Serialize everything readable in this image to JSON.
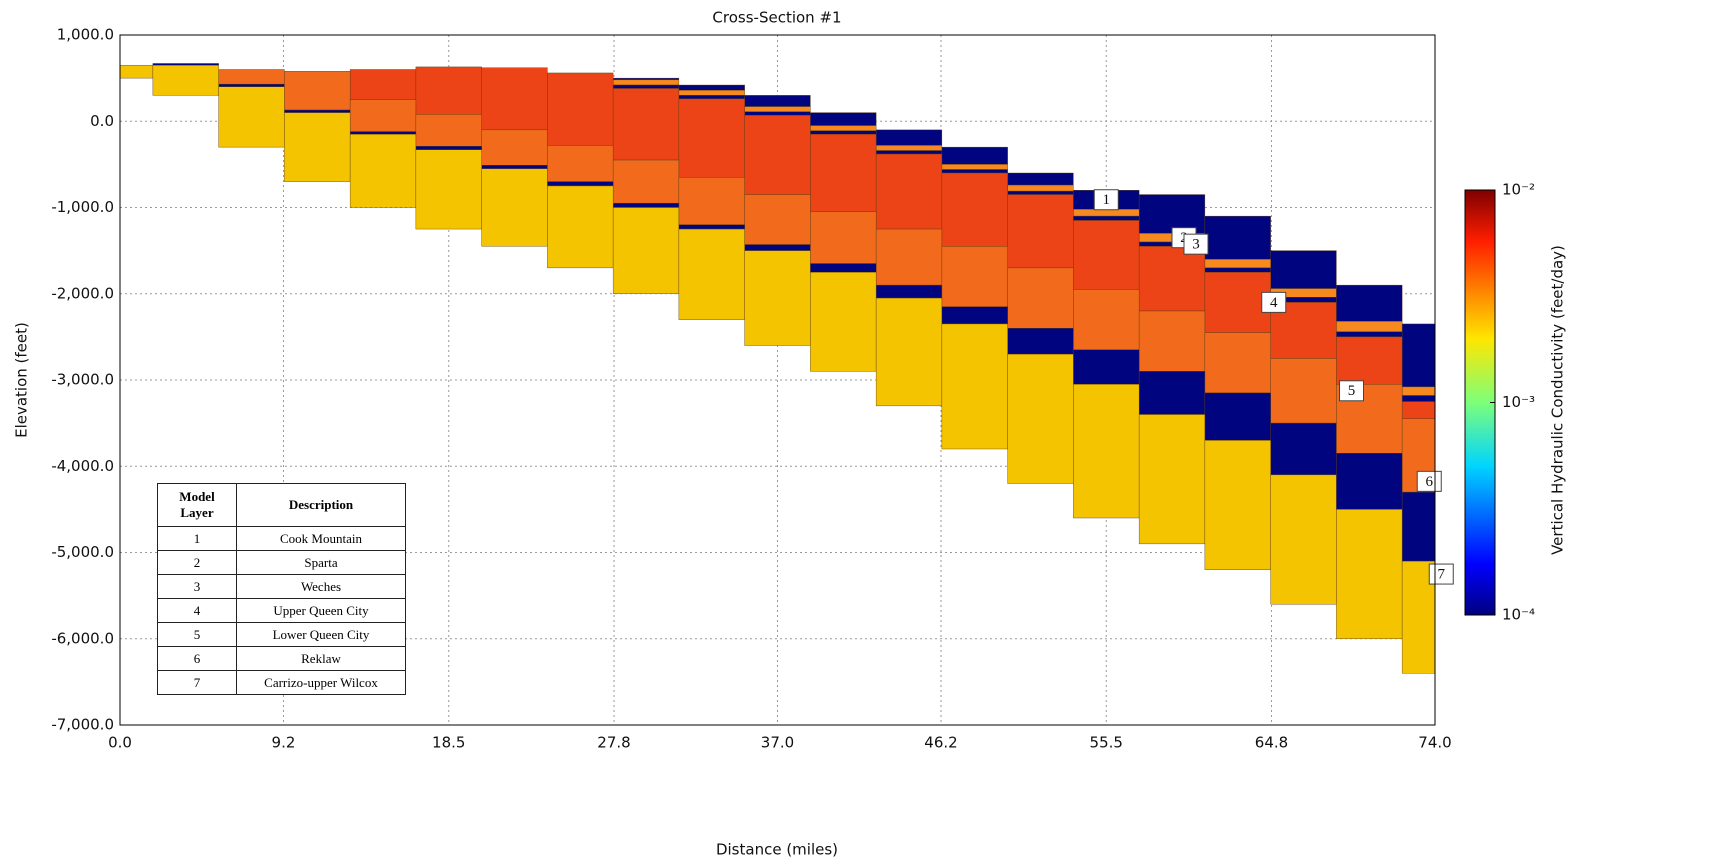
{
  "chart_data": {
    "type": "cross-section",
    "title": "Cross-Section #1",
    "xlabel": "Distance (miles)",
    "ylabel": "Elevation (feet)",
    "xlim": [
      0,
      74
    ],
    "ylim": [
      -7000,
      1000
    ],
    "xticks": [
      {
        "value": 0,
        "label": "0.0"
      },
      9.2,
      18.5,
      27.8,
      {
        "value": 37,
        "label": "37.0"
      },
      46.2,
      55.5,
      64.8,
      {
        "value": 74,
        "label": "74.0"
      }
    ],
    "yticks": [
      {
        "value": 1000,
        "label": "1,000.0"
      },
      {
        "value": 0,
        "label": "0.0"
      },
      {
        "value": -1000,
        "label": "-1,000.0"
      },
      {
        "value": -2000,
        "label": "-2,000.0"
      },
      {
        "value": -3000,
        "label": "-3,000.0"
      },
      {
        "value": -4000,
        "label": "-4,000.0"
      },
      {
        "value": -5000,
        "label": "-5,000.0"
      },
      {
        "value": -6000,
        "label": "-6,000.0"
      },
      {
        "value": -7000,
        "label": "-7,000.0"
      }
    ],
    "grid": true,
    "x": [
      0,
      3.7,
      7.4,
      11.1,
      14.8,
      18.5,
      22.2,
      25.9,
      29.6,
      33.3,
      37,
      40.7,
      44.4,
      48.1,
      51.8,
      55.5,
      59.2,
      62.9,
      66.6,
      70.3,
      74
    ],
    "layers": [
      {
        "label": "1",
        "description": "Cook Mountain",
        "color": "#00057f",
        "top": [
          null,
          null,
          null,
          null,
          null,
          null,
          null,
          null,
          500,
          420,
          300,
          100,
          -100,
          -300,
          -600,
          -800,
          -850,
          -1100,
          -1500,
          -1900,
          -2350
        ]
      },
      {
        "label": "2",
        "description": "Sparta",
        "color": "#f78a1e",
        "top": [
          null,
          null,
          null,
          null,
          null,
          null,
          null,
          null,
          480,
          360,
          170,
          -50,
          -280,
          -500,
          -740,
          -1020,
          -1300,
          -1600,
          -1940,
          -2320,
          -3080
        ]
      },
      {
        "label": "3",
        "description": "Weches",
        "color": "#00057f",
        "top": [
          null,
          null,
          null,
          null,
          null,
          null,
          null,
          null,
          420,
          300,
          110,
          -110,
          -340,
          -560,
          -810,
          -1100,
          -1400,
          -1700,
          -2040,
          -2440,
          -3180
        ]
      },
      {
        "label": "4",
        "description": "Upper Queen City",
        "color": "#ec4416",
        "top": [
          null,
          null,
          null,
          null,
          600,
          630,
          620,
          560,
          380,
          260,
          70,
          -150,
          -380,
          -600,
          -850,
          -1150,
          -1450,
          -1750,
          -2100,
          -2500,
          -3250
        ]
      },
      {
        "label": "5",
        "description": "Lower Queen City",
        "color": "#f26a1c",
        "top": [
          null,
          null,
          600,
          580,
          250,
          80,
          -100,
          -280,
          -450,
          -650,
          -850,
          -1050,
          -1250,
          -1450,
          -1700,
          -1950,
          -2200,
          -2450,
          -2750,
          -3050,
          -3450
        ]
      },
      {
        "label": "6",
        "description": "Reklaw",
        "color": "#00057f",
        "top": [
          null,
          670,
          430,
          130,
          -120,
          -290,
          -510,
          -700,
          -950,
          -1200,
          -1430,
          -1650,
          -1900,
          -2150,
          -2400,
          -2650,
          -2900,
          -3150,
          -3500,
          -3850,
          -4300
        ]
      },
      {
        "label": "7",
        "description": "Carrizo-upper Wilcox",
        "color": "#f5c400",
        "top": [
          650,
          650,
          400,
          100,
          -150,
          -330,
          -550,
          -750,
          -1000,
          -1250,
          -1500,
          -1750,
          -2050,
          -2350,
          -2700,
          -3050,
          -3400,
          -3700,
          -4100,
          -4500,
          -5100
        ]
      }
    ],
    "base": [
      500,
      300,
      -300,
      -700,
      -1000,
      -1250,
      -1450,
      -1700,
      -2000,
      -2300,
      -2600,
      -2900,
      -3300,
      -3800,
      -4200,
      -4600,
      -4900,
      -5200,
      -5600,
      -6000,
      -6400
    ],
    "table_header": [
      "Model Layer",
      "Description"
    ],
    "colorbar": {
      "label": "Vertical Hydraulic Conductivity (feet/day)",
      "log": true,
      "lim": [
        0.0001,
        0.01
      ],
      "ticks": [
        {
          "value": 0.01,
          "label": "10⁻²"
        },
        {
          "value": 0.001,
          "label": "10⁻³"
        },
        {
          "value": 0.0001,
          "label": "10⁻⁴"
        }
      ]
    }
  }
}
